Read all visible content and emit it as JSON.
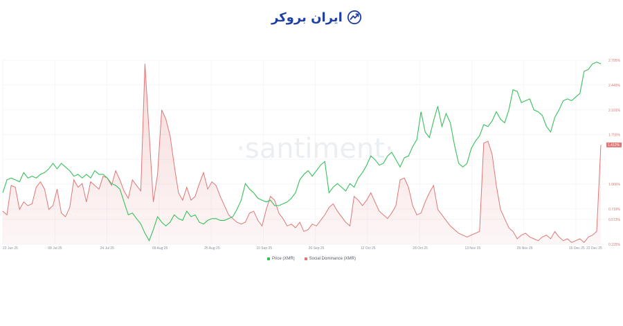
{
  "logo": {
    "text": "ایران بروکر",
    "icon": "chart-trend-icon",
    "color": "#1d3fa6"
  },
  "watermark": "·santiment·",
  "chart_data": {
    "type": "line",
    "x_tick_labels": [
      "23 Jun 25",
      "08 Jul 25",
      "24 Jul 25",
      "09 Aug 25",
      "25 Aug 25",
      "10 Sep 25",
      "26 Sep 25",
      "12 Oct 25",
      "28 Oct 25",
      "13 Nov 25",
      "29 Nov 25",
      "15 Dec 25",
      "22 Dec 25"
    ],
    "right_axis": {
      "ticks": [
        0.225,
        0.573,
        0.719,
        1.066,
        1.412,
        1.755,
        2.101,
        2.449,
        2.795
      ],
      "tick_labels": [
        "0.225%",
        "0.573%",
        "0.719%",
        "1.066%",
        "",
        "1.755%",
        "2.101%",
        "2.449%",
        "2.795%"
      ],
      "ylim": [
        0.225,
        2.795
      ],
      "current_value_label": "1.412%"
    },
    "grid": true,
    "legend_position": "bottom-center",
    "series": [
      {
        "name": "Price (XMR)",
        "color": "#35c15a",
        "values": [
          0.28,
          0.35,
          0.36,
          0.35,
          0.34,
          0.39,
          0.36,
          0.37,
          0.36,
          0.38,
          0.39,
          0.41,
          0.44,
          0.41,
          0.44,
          0.42,
          0.4,
          0.37,
          0.38,
          0.36,
          0.38,
          0.36,
          0.4,
          0.38,
          0.38,
          0.36,
          0.33,
          0.32,
          0.3,
          0.23,
          0.16,
          0.17,
          0.14,
          0.11,
          0.06,
          0.02,
          0.08,
          0.15,
          0.12,
          0.1,
          0.12,
          0.16,
          0.14,
          0.13,
          0.18,
          0.15,
          0.16,
          0.12,
          0.11,
          0.13,
          0.14,
          0.14,
          0.13,
          0.13,
          0.14,
          0.15,
          0.19,
          0.24,
          0.33,
          0.3,
          0.28,
          0.25,
          0.24,
          0.23,
          0.24,
          0.21,
          0.21,
          0.22,
          0.23,
          0.25,
          0.28,
          0.35,
          0.38,
          0.4,
          0.37,
          0.4,
          0.43,
          0.45,
          0.28,
          0.31,
          0.33,
          0.31,
          0.29,
          0.33,
          0.31,
          0.36,
          0.39,
          0.43,
          0.48,
          0.46,
          0.43,
          0.44,
          0.48,
          0.5,
          0.46,
          0.42,
          0.47,
          0.48,
          0.53,
          0.57,
          0.72,
          0.61,
          0.58,
          0.67,
          0.75,
          0.64,
          0.71,
          0.66,
          0.54,
          0.44,
          0.42,
          0.44,
          0.52,
          0.56,
          0.59,
          0.65,
          0.64,
          0.67,
          0.72,
          0.68,
          0.66,
          0.73,
          0.84,
          0.83,
          0.77,
          0.78,
          0.79,
          0.73,
          0.72,
          0.7,
          0.64,
          0.61,
          0.69,
          0.73,
          0.78,
          0.79,
          0.78,
          0.8,
          0.82,
          0.94,
          0.95,
          0.98,
          0.99,
          0.98
        ],
        "end_marker": "2.795%"
      },
      {
        "name": "Social Dominance (XMR)",
        "color": "#e07676",
        "values": [
          0.18,
          0.16,
          0.32,
          0.31,
          0.19,
          0.23,
          0.21,
          0.22,
          0.31,
          0.34,
          0.3,
          0.19,
          0.21,
          0.3,
          0.17,
          0.15,
          0.2,
          0.35,
          0.31,
          0.33,
          0.23,
          0.34,
          0.32,
          0.3,
          0.37,
          0.36,
          0.32,
          0.4,
          0.35,
          0.29,
          0.25,
          0.35,
          0.32,
          0.29,
          0.98,
          0.6,
          0.23,
          0.38,
          0.73,
          0.68,
          0.59,
          0.43,
          0.28,
          0.24,
          0.31,
          0.24,
          0.26,
          0.33,
          0.39,
          0.3,
          0.34,
          0.32,
          0.26,
          0.21,
          0.16,
          0.14,
          0.12,
          0.11,
          0.12,
          0.17,
          0.18,
          0.13,
          0.1,
          0.19,
          0.26,
          0.24,
          0.17,
          0.14,
          0.1,
          0.11,
          0.09,
          0.12,
          0.07,
          0.08,
          0.11,
          0.1,
          0.13,
          0.16,
          0.2,
          0.22,
          0.18,
          0.15,
          0.12,
          0.1,
          0.26,
          0.24,
          0.21,
          0.24,
          0.28,
          0.23,
          0.18,
          0.16,
          0.14,
          0.17,
          0.21,
          0.35,
          0.36,
          0.31,
          0.21,
          0.16,
          0.17,
          0.23,
          0.28,
          0.32,
          0.19,
          0.16,
          0.13,
          0.1,
          0.08,
          0.06,
          0.05,
          0.04,
          0.05,
          0.06,
          0.07,
          0.55,
          0.56,
          0.49,
          0.32,
          0.19,
          0.14,
          0.09,
          0.07,
          0.03,
          0.05,
          0.06,
          0.04,
          0.03,
          0.02,
          0.04,
          0.05,
          0.03,
          0.07,
          0.04,
          0.02,
          0.03,
          0.01,
          0.02,
          0.03,
          0.01,
          0.04,
          0.05,
          0.07,
          0.54
        ],
        "end_marker": "1.412%"
      }
    ]
  }
}
